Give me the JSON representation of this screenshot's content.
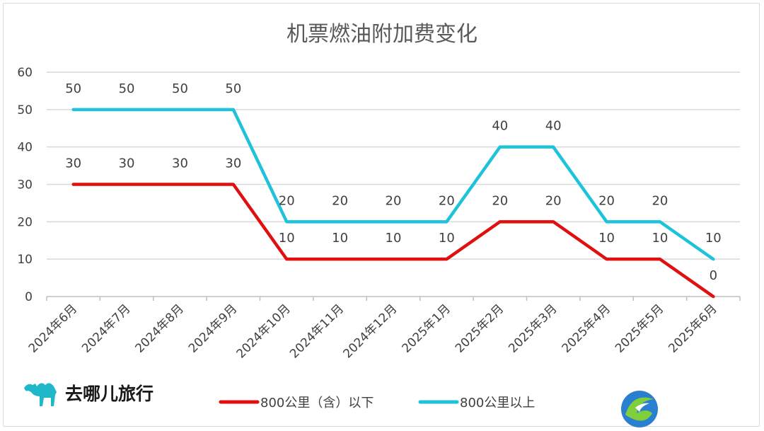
{
  "chart_data": {
    "type": "line",
    "title": "机票燃油附加费变化",
    "categories": [
      "2024年6月",
      "2024年7月",
      "2024年8月",
      "2024年9月",
      "2024年10月",
      "2024年11月",
      "2024年12月",
      "2025年1月",
      "2025年2月",
      "2025年3月",
      "2025年4月",
      "2025年5月",
      "2025年6月"
    ],
    "series": [
      {
        "name": "800公里（含）以下",
        "color": "#e01010",
        "values": [
          30,
          30,
          30,
          30,
          10,
          10,
          10,
          10,
          20,
          20,
          10,
          10,
          0
        ]
      },
      {
        "name": "800公里以上",
        "color": "#1ec3d9",
        "values": [
          50,
          50,
          50,
          50,
          20,
          20,
          20,
          20,
          40,
          40,
          20,
          20,
          10
        ]
      }
    ],
    "ylim": [
      0,
      60
    ],
    "yticks": [
      0,
      10,
      20,
      30,
      40,
      50,
      60
    ],
    "grid": true,
    "legend": "bottom"
  },
  "brand": {
    "name": "去哪儿旅行",
    "logo_icon": "camel-icon"
  },
  "watermark": {
    "icon": "round-logo-icon"
  }
}
